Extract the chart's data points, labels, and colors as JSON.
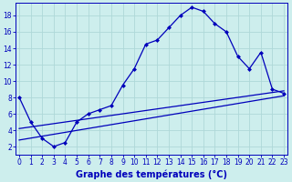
{
  "xlabel": "Graphe des températures (°C)",
  "bg_color": "#cdeeed",
  "grid_color": "#aed8d8",
  "line_color": "#0000bb",
  "x_ticks": [
    0,
    1,
    2,
    3,
    4,
    5,
    6,
    7,
    8,
    9,
    10,
    11,
    12,
    13,
    14,
    15,
    16,
    17,
    18,
    19,
    20,
    21,
    22,
    23
  ],
  "y_ticks": [
    2,
    4,
    6,
    8,
    10,
    12,
    14,
    16,
    18
  ],
  "ylim": [
    1.0,
    19.5
  ],
  "xlim": [
    -0.3,
    23.3
  ],
  "main_x": [
    0,
    1,
    2,
    3,
    4,
    5,
    6,
    7,
    8,
    9,
    10,
    11,
    12,
    13,
    14,
    15,
    16,
    17,
    18,
    19,
    20,
    21,
    22,
    23
  ],
  "main_y": [
    8.0,
    5.0,
    3.0,
    2.0,
    2.5,
    5.0,
    6.0,
    6.5,
    7.0,
    9.5,
    11.5,
    14.5,
    15.0,
    16.5,
    18.0,
    19.0,
    18.5,
    17.0,
    16.0,
    13.0,
    11.5,
    13.5,
    9.0,
    8.5
  ],
  "trend1_x": [
    0,
    23
  ],
  "trend1_y": [
    4.2,
    8.8
  ],
  "trend2_x": [
    0,
    23
  ],
  "trend2_y": [
    2.8,
    8.2
  ],
  "markersize": 2.5,
  "linewidth": 0.9,
  "trend_linewidth": 0.9,
  "xlabel_fontsize": 7,
  "tick_fontsize": 5.5
}
